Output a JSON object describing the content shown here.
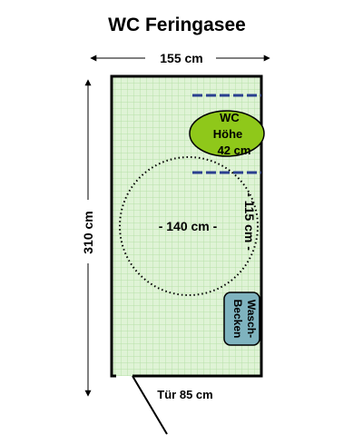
{
  "title": "WC Feringasee",
  "dimensions": {
    "width_label": "155 cm",
    "height_label": "310 cm",
    "door_label": "Tür 85 cm",
    "turning_circle_label": "- 140 cm -",
    "side_depth_label": "- 115 cm -"
  },
  "toilet": {
    "line1": "WC",
    "line2": "Höhe",
    "line3": "42 cm"
  },
  "sink": {
    "line1": "Wasch-",
    "line2": "Becken"
  },
  "colors": {
    "floor": "#dff3d6",
    "tile_grid": "#b7e0a8",
    "toilet": "#8fc81a",
    "sink": "#7fb3bf",
    "handrail": "#2a3f8f",
    "wall": "#000000"
  }
}
